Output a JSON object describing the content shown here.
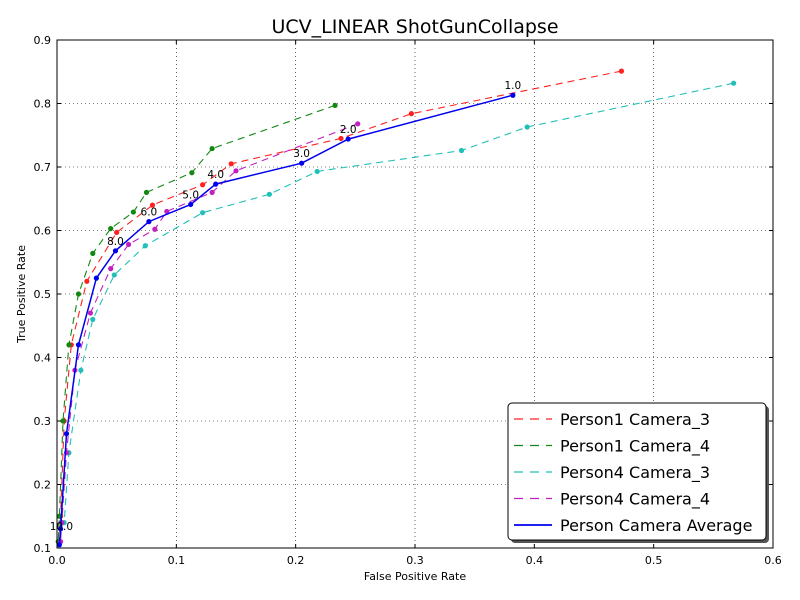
{
  "chart_data": {
    "type": "line",
    "title": "UCV_LINEAR ShotGunCollapse",
    "xlabel": "False Positive Rate",
    "ylabel": "True Positive Rate",
    "xlim": [
      0.0,
      0.6
    ],
    "ylim": [
      0.1,
      0.9
    ],
    "xticks": [
      "0.0",
      "0.1",
      "0.2",
      "0.3",
      "0.4",
      "0.5",
      "0.6"
    ],
    "yticks": [
      "0.1",
      "0.2",
      "0.3",
      "0.4",
      "0.5",
      "0.6",
      "0.7",
      "0.8",
      "0.9"
    ],
    "grid": true,
    "legend_position": "bottom-right",
    "series": [
      {
        "name": "Person1 Camera_3",
        "color": "#ff2020",
        "dashed": true,
        "points": [
          [
            0.473,
            0.851
          ],
          [
            0.297,
            0.784
          ],
          [
            0.238,
            0.745
          ],
          [
            0.146,
            0.705
          ],
          [
            0.122,
            0.672
          ],
          [
            0.08,
            0.64
          ],
          [
            0.05,
            0.597
          ],
          [
            0.025,
            0.52
          ],
          [
            0.012,
            0.42
          ],
          [
            0.006,
            0.3
          ],
          [
            0.003,
            0.15
          ],
          [
            0.002,
            0.11
          ]
        ]
      },
      {
        "name": "Person1 Camera_4",
        "color": "#118811",
        "dashed": true,
        "points": [
          [
            0.233,
            0.797
          ],
          [
            0.13,
            0.729
          ],
          [
            0.113,
            0.691
          ],
          [
            0.075,
            0.66
          ],
          [
            0.064,
            0.629
          ],
          [
            0.045,
            0.603
          ],
          [
            0.03,
            0.564
          ],
          [
            0.018,
            0.5
          ],
          [
            0.01,
            0.42
          ],
          [
            0.005,
            0.3
          ],
          [
            0.002,
            0.15
          ],
          [
            0.001,
            0.11
          ]
        ]
      },
      {
        "name": "Person4 Camera_3",
        "color": "#20c0b8",
        "dashed": true,
        "points": [
          [
            0.567,
            0.832
          ],
          [
            0.394,
            0.763
          ],
          [
            0.339,
            0.726
          ],
          [
            0.218,
            0.693
          ],
          [
            0.178,
            0.657
          ],
          [
            0.122,
            0.628
          ],
          [
            0.074,
            0.576
          ],
          [
            0.048,
            0.53
          ],
          [
            0.03,
            0.46
          ],
          [
            0.02,
            0.38
          ],
          [
            0.01,
            0.25
          ],
          [
            0.006,
            0.14
          ]
        ]
      },
      {
        "name": "Person4 Camera_4",
        "color": "#c020c0",
        "dashed": true,
        "points": [
          [
            0.252,
            0.768
          ],
          [
            0.15,
            0.694
          ],
          [
            0.13,
            0.66
          ],
          [
            0.092,
            0.63
          ],
          [
            0.082,
            0.602
          ],
          [
            0.06,
            0.578
          ],
          [
            0.045,
            0.54
          ],
          [
            0.028,
            0.47
          ],
          [
            0.015,
            0.38
          ],
          [
            0.008,
            0.25
          ],
          [
            0.004,
            0.14
          ],
          [
            0.003,
            0.11
          ]
        ]
      },
      {
        "name": "Person Camera Average",
        "color": "#0000ee",
        "dashed": false,
        "points": [
          [
            0.382,
            0.813
          ],
          [
            0.244,
            0.744
          ],
          [
            0.205,
            0.706
          ],
          [
            0.133,
            0.673
          ],
          [
            0.112,
            0.641
          ],
          [
            0.077,
            0.614
          ],
          [
            0.049,
            0.568
          ],
          [
            0.033,
            0.525
          ],
          [
            0.018,
            0.42
          ],
          [
            0.008,
            0.28
          ],
          [
            0.003,
            0.13
          ],
          [
            0.002,
            0.105
          ]
        ]
      }
    ],
    "annotations": [
      {
        "text": "1.0",
        "x": 0.382,
        "y": 0.813
      },
      {
        "text": "2.0",
        "x": 0.244,
        "y": 0.744
      },
      {
        "text": "3.0",
        "x": 0.205,
        "y": 0.706
      },
      {
        "text": "4.0",
        "x": 0.133,
        "y": 0.673
      },
      {
        "text": "5.0",
        "x": 0.112,
        "y": 0.641
      },
      {
        "text": "6.0",
        "x": 0.077,
        "y": 0.614
      },
      {
        "text": "8.0",
        "x": 0.049,
        "y": 0.568
      },
      {
        "text": "10.0",
        "x": 0.002,
        "y": 0.13
      }
    ]
  }
}
